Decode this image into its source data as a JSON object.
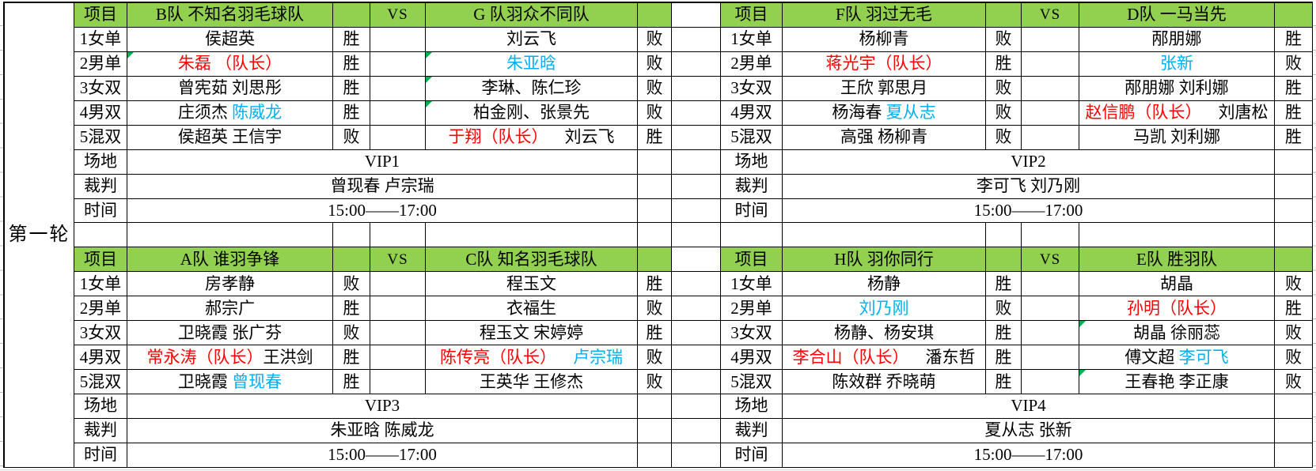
{
  "app": {
    "round_label": "第一轮"
  },
  "labels": {
    "item": "项目",
    "vs": "VS",
    "venue": "场地",
    "referee": "裁判",
    "time": "时间",
    "events": [
      "1女单",
      "2男单",
      "3女双",
      "4男双",
      "5混双"
    ]
  },
  "colors": {
    "header_green": "#92D050",
    "red": "#FF0000",
    "blue": "#00B0F0",
    "note_green": "#00B050",
    "border": "#000000"
  },
  "matches": [
    {
      "team_left": "B队 不知名羽毛球队",
      "team_right": "G 队羽众不同队",
      "venue": "VIP1",
      "referees": "曾现春 卢宗瑞",
      "time": "15:00——17:00",
      "rows": [
        {
          "left": {
            "seg": [
              {
                "t": "侯超英",
                "c": "k"
              }
            ],
            "res": "胜",
            "note": false
          },
          "right": {
            "seg": [
              {
                "t": "刘云飞",
                "c": "k"
              }
            ],
            "res": "败",
            "note": false
          }
        },
        {
          "left": {
            "seg": [
              {
                "t": "朱磊 （队长）",
                "c": "r"
              }
            ],
            "res": "胜",
            "note": true
          },
          "right": {
            "seg": [
              {
                "t": "朱亚晗",
                "c": "b"
              }
            ],
            "res": "败",
            "note": true
          }
        },
        {
          "left": {
            "seg": [
              {
                "t": "曾宪茹 刘思彤",
                "c": "k"
              }
            ],
            "res": "胜",
            "note": false
          },
          "right": {
            "seg": [
              {
                "t": "李琳、陈仁珍",
                "c": "k"
              }
            ],
            "res": "败",
            "note": true
          }
        },
        {
          "left": {
            "seg": [
              {
                "t": "庄须杰 ",
                "c": "k"
              },
              {
                "t": "陈威龙",
                "c": "b"
              }
            ],
            "res": "胜",
            "note": false
          },
          "right": {
            "seg": [
              {
                "t": "柏金刚、张景先",
                "c": "k"
              }
            ],
            "res": "败",
            "note": true
          }
        },
        {
          "left": {
            "seg": [
              {
                "t": "侯超英 王信宇",
                "c": "k"
              }
            ],
            "res": "败",
            "note": false
          },
          "right": {
            "seg": [
              {
                "t": "于翔（队长）",
                "c": "r"
              },
              {
                "t": "　刘云飞",
                "c": "k"
              }
            ],
            "res": "胜",
            "note": false
          }
        }
      ]
    },
    {
      "team_left": "F队 羽过无毛",
      "team_right": "D队 一马当先",
      "venue": "VIP2",
      "referees": "李可飞 刘乃刚",
      "time": "15:00——17:00",
      "rows": [
        {
          "left": {
            "seg": [
              {
                "t": "杨柳青",
                "c": "k"
              }
            ],
            "res": "败",
            "note": false
          },
          "right": {
            "seg": [
              {
                "t": "邴朋娜",
                "c": "k"
              }
            ],
            "res": "胜",
            "note": false
          }
        },
        {
          "left": {
            "seg": [
              {
                "t": "蒋光宇（队长）",
                "c": "r"
              }
            ],
            "res": "胜",
            "note": false
          },
          "right": {
            "seg": [
              {
                "t": "张新",
                "c": "b"
              }
            ],
            "res": "败",
            "note": false
          }
        },
        {
          "left": {
            "seg": [
              {
                "t": "王欣 郭思月",
                "c": "k"
              }
            ],
            "res": "败",
            "note": false
          },
          "right": {
            "seg": [
              {
                "t": "邴朋娜 刘利娜",
                "c": "k"
              }
            ],
            "res": "胜",
            "note": false
          }
        },
        {
          "left": {
            "seg": [
              {
                "t": "杨海春 ",
                "c": "k"
              },
              {
                "t": "夏从志",
                "c": "b"
              }
            ],
            "res": "败",
            "note": false
          },
          "right": {
            "seg": [
              {
                "t": "赵信鹏（队长）",
                "c": "r"
              },
              {
                "t": "　刘唐松",
                "c": "k"
              }
            ],
            "res": "胜",
            "note": false
          }
        },
        {
          "left": {
            "seg": [
              {
                "t": "高强 杨柳青",
                "c": "k"
              }
            ],
            "res": "败",
            "note": false
          },
          "right": {
            "seg": [
              {
                "t": "马凯 刘利娜",
                "c": "k"
              }
            ],
            "res": "胜",
            "note": false
          }
        }
      ]
    },
    {
      "team_left": "A队 谁羽争锋",
      "team_right": "C队 知名羽毛球队",
      "venue": "VIP3",
      "referees": "朱亚晗 陈威龙",
      "time": "15:00——17:00",
      "rows": [
        {
          "left": {
            "seg": [
              {
                "t": "房孝静",
                "c": "k"
              }
            ],
            "res": "败",
            "note": false
          },
          "right": {
            "seg": [
              {
                "t": "程玉文",
                "c": "k"
              }
            ],
            "res": "胜",
            "note": false
          }
        },
        {
          "left": {
            "seg": [
              {
                "t": "郝宗广",
                "c": "k"
              }
            ],
            "res": "胜",
            "note": false
          },
          "right": {
            "seg": [
              {
                "t": "衣福生",
                "c": "k"
              }
            ],
            "res": "败",
            "note": false
          }
        },
        {
          "left": {
            "seg": [
              {
                "t": "卫晓霞 张广芬",
                "c": "k"
              }
            ],
            "res": "败",
            "note": false
          },
          "right": {
            "seg": [
              {
                "t": "程玉文 宋婷婷",
                "c": "k"
              }
            ],
            "res": "胜",
            "note": false
          }
        },
        {
          "left": {
            "seg": [
              {
                "t": "常永涛（队长）",
                "c": "r"
              },
              {
                "t": "王洪剑",
                "c": "k"
              }
            ],
            "res": "胜",
            "note": false
          },
          "right": {
            "seg": [
              {
                "t": "陈传亮（队长）",
                "c": "r"
              },
              {
                "t": "　卢宗瑞",
                "c": "b"
              }
            ],
            "res": "败",
            "note": false
          }
        },
        {
          "left": {
            "seg": [
              {
                "t": "卫晓霞 ",
                "c": "k"
              },
              {
                "t": "曾现春",
                "c": "b"
              }
            ],
            "res": "胜",
            "note": false
          },
          "right": {
            "seg": [
              {
                "t": "王英华 王修杰",
                "c": "k"
              }
            ],
            "res": "败",
            "note": false
          }
        }
      ]
    },
    {
      "team_left": "H队 羽你同行",
      "team_right": "E队 胜羽队",
      "venue": "VIP4",
      "referees": "夏从志 张新",
      "time": "15:00——17:00",
      "rows": [
        {
          "left": {
            "seg": [
              {
                "t": "杨静",
                "c": "k"
              }
            ],
            "res": "胜",
            "note": false
          },
          "right": {
            "seg": [
              {
                "t": "胡晶",
                "c": "k"
              }
            ],
            "res": "败",
            "note": false
          }
        },
        {
          "left": {
            "seg": [
              {
                "t": "刘乃刚",
                "c": "b"
              }
            ],
            "res": "败",
            "note": false
          },
          "right": {
            "seg": [
              {
                "t": "孙明（队长）",
                "c": "r"
              }
            ],
            "res": "胜",
            "note": false
          }
        },
        {
          "left": {
            "seg": [
              {
                "t": "杨静、杨安琪",
                "c": "k"
              }
            ],
            "res": "胜",
            "note": false
          },
          "right": {
            "seg": [
              {
                "t": "胡晶 徐丽蕊",
                "c": "k"
              }
            ],
            "res": "败",
            "note": true
          }
        },
        {
          "left": {
            "seg": [
              {
                "t": "李合山（队长）",
                "c": "r"
              },
              {
                "t": "　潘东哲",
                "c": "k"
              }
            ],
            "res": "胜",
            "note": false
          },
          "right": {
            "seg": [
              {
                "t": "傅文超 ",
                "c": "k"
              },
              {
                "t": "李可飞",
                "c": "b"
              }
            ],
            "res": "败",
            "note": false
          }
        },
        {
          "left": {
            "seg": [
              {
                "t": "陈效群 乔晓萌",
                "c": "k"
              }
            ],
            "res": "胜",
            "note": false
          },
          "right": {
            "seg": [
              {
                "t": "王春艳 李正康",
                "c": "k"
              }
            ],
            "res": "败",
            "note": true
          }
        }
      ]
    }
  ]
}
